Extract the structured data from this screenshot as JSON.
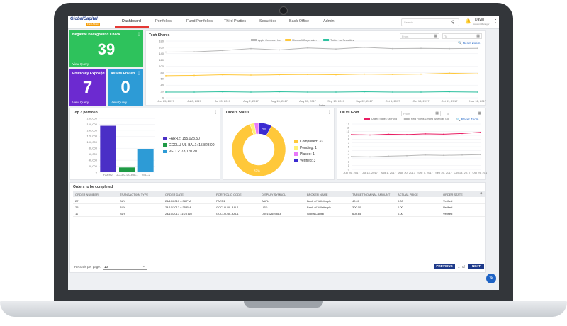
{
  "app": {
    "logo_main": "GlobalCapital",
    "logo_sub": "Fund Admin"
  },
  "nav": {
    "tabs": [
      {
        "label": "Dashboard"
      },
      {
        "label": "Portfolios"
      },
      {
        "label": "Fund Portfolios"
      },
      {
        "label": "Third Parties"
      },
      {
        "label": "Securities"
      },
      {
        "label": "Back Office"
      },
      {
        "label": "Admin"
      }
    ],
    "search_placeholder": "Search...",
    "user_name": "David",
    "user_role": "Account Manager"
  },
  "colors": {
    "green": "#2ec25c",
    "purple": "#6c2ad0",
    "blue": "#2d9bd6",
    "navy": "#1e3a8a",
    "gold": "#ffc83a",
    "pink": "#e91e63"
  },
  "kpi": [
    {
      "title": "Negative Background Check",
      "value": "39",
      "link": "View Query"
    },
    {
      "title": "Politically Exposed",
      "value": "7",
      "link": "View Query"
    },
    {
      "title": "Assets Frozen",
      "value": "0",
      "link": "View Query"
    }
  ],
  "tech_shares": {
    "title": "Tech Shares",
    "from_placeholder": "From",
    "to_placeholder": "To",
    "reset_label": "Reset Zoom",
    "xlabel": "Date",
    "chart_data": {
      "type": "line",
      "x": [
        "Jun 25, 2017",
        "Jul 8, 2017",
        "Jul 20, 2017",
        "Aug 2, 2017",
        "Aug 15, 2017",
        "Aug 28, 2017",
        "Sep 10, 2017",
        "Sep 22, 2017",
        "Oct 5, 2017",
        "Oct 18, 2017",
        "Oct 31, 2017",
        "Nov 12, 2017"
      ],
      "y_ticks": [
        "0",
        "20",
        "40",
        "60",
        "80",
        "100",
        "120",
        "140",
        "160",
        "180"
      ],
      "ylim": [
        0,
        180
      ],
      "series": [
        {
          "name": "Apple Computer Inc",
          "color": "#b8b8b8",
          "values": [
            145,
            146,
            150,
            156,
            152,
            158,
            155,
            160,
            156,
            157,
            156,
            157
          ]
        },
        {
          "name": "Microsoft Corporation",
          "color": "#ffc83a",
          "values": [
            70,
            71,
            73,
            72,
            73,
            74,
            73,
            75,
            74,
            75,
            78,
            76
          ]
        },
        {
          "name": "Twitter Inc Securities",
          "color": "#2ec2a0",
          "values": [
            18,
            18,
            19,
            18,
            19,
            18,
            18,
            19,
            18,
            18,
            19,
            18
          ]
        }
      ]
    }
  },
  "top3": {
    "title": "Top 3 portfolio",
    "chart_data": {
      "type": "bar",
      "categories": [
        "FARR2",
        "GCCLU-UL-BAL1",
        "VELL2"
      ],
      "values": [
        155023.5,
        15828.0,
        78170.2
      ],
      "colors": [
        "#4a2fc6",
        "#1f9a45",
        "#2d9bd6"
      ],
      "y_ticks": [
        "0",
        "20,000",
        "40,000",
        "60,000",
        "80,000",
        "100,000",
        "120,000",
        "140,000",
        "160,000",
        "180,000"
      ],
      "ylim": [
        0,
        180000
      ],
      "legend": [
        {
          "label": "FARR2: 155,023.50"
        },
        {
          "label": "GCCLU-UL-BAL1: 15,828.00"
        },
        {
          "label": "VELL2: 78,170.20"
        }
      ]
    }
  },
  "orders_status": {
    "title": "Orders Status",
    "chart_data": {
      "type": "pie",
      "labels": [
        "Completed",
        "Pending",
        "Placed",
        "Verified"
      ],
      "values": [
        33,
        1,
        1,
        3
      ],
      "colors": [
        "#ffc83a",
        "#fff176",
        "#e879f9",
        "#3b2bd1"
      ],
      "slice_labels": [
        "87%",
        "",
        "",
        "8%"
      ],
      "legend": [
        {
          "label": "Completed: 33"
        },
        {
          "label": "Pending: 1"
        },
        {
          "label": "Placed: 1"
        },
        {
          "label": "Verified: 3"
        }
      ]
    }
  },
  "oil_gold": {
    "title": "Oil vs Gold",
    "from_placeholder": "From",
    "to_placeholder": "To",
    "reset_label": "Reset Zoom",
    "chart_data": {
      "type": "line",
      "x": [
        "Jun 26, 2017",
        "Jul 14, 2017",
        "Aug 1, 2017",
        "Aug 20, 2017",
        "Sep 7, 2017",
        "Sep 25, 2017",
        "Oct 13, 2017",
        "Oct 29, 2017"
      ],
      "y_ticks": [
        "0",
        "1",
        "2",
        "3",
        "4",
        "5",
        "6",
        "7",
        "8",
        "9",
        "10",
        "11",
        "12"
      ],
      "ylim": [
        0,
        12
      ],
      "series": [
        {
          "name": "United States Oil Fund",
          "color": "#e91e63",
          "values": [
            9.2,
            9.1,
            9.3,
            9.2,
            9.4,
            9.3,
            9.5,
            9.8
          ]
        },
        {
          "name": "Reid Fidelis Limited American Gld",
          "color": "#b8b8b8",
          "values": [
            3.4,
            3.3,
            3.5,
            3.6,
            3.8,
            3.7,
            3.8,
            3.9
          ]
        }
      ]
    }
  },
  "orders": {
    "title": "Orders to be completed",
    "columns": [
      "ORDER NUMBER",
      "TRANSACTION TYPE",
      "ORDER DATE",
      "PORTFOLIO CODE",
      "DISPLAY SYMBOL",
      "BROKER NAME",
      "TARGET NOMINAL AMOUNT",
      "ACTUAL PRICE",
      "ORDER STATE"
    ],
    "rows": [
      [
        "27",
        "BUY",
        "24/10/2017 4:38 PM",
        "FARR2",
        "AAPL",
        "Bank of Valletta plc",
        "40.00",
        "0.00",
        "Verified"
      ],
      [
        "25",
        "BUY",
        "24/10/2017 4:35 PM",
        "GCCLU-UL-BAL1",
        "USD",
        "Bank of Valletta plc",
        "300.00",
        "0.00",
        "Verified"
      ],
      [
        "11",
        "BUY",
        "24/10/2017 11:23 AM",
        "GCCLU-UL-BAL1",
        "LU0162659883",
        "GlobalCapital",
        "608.65",
        "0.00",
        "Verified"
      ]
    ],
    "records_label": "Records per page:",
    "records_value": "10",
    "prev_label": "PREVIOUS",
    "page": "1",
    "of_label": "of",
    "next_label": "NEXT"
  }
}
